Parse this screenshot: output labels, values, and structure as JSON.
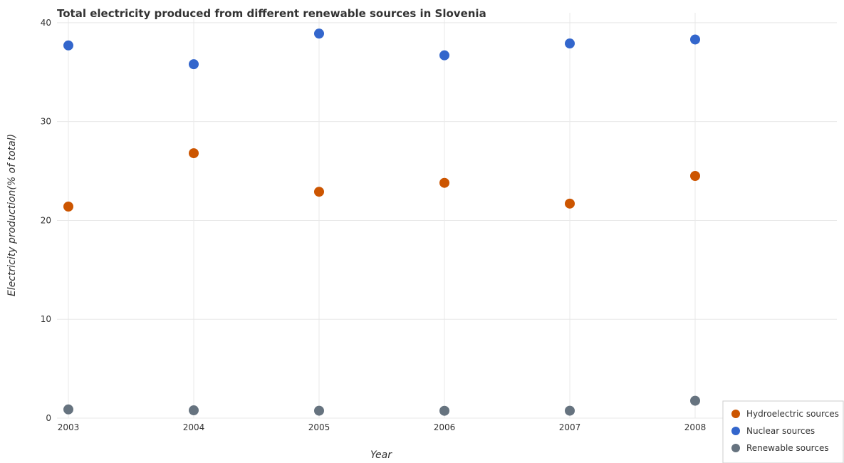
{
  "chart_data": {
    "type": "scatter",
    "title": "Total electricity produced from different renewable sources in Slovenia",
    "xlabel": "Year",
    "ylabel": "Electricity production(% of total)",
    "categories": [
      "2003",
      "2004",
      "2005",
      "2006",
      "2007",
      "2008"
    ],
    "ylim": [
      0,
      41
    ],
    "yticks": [
      "0",
      "10",
      "20",
      "30",
      "40"
    ],
    "ytick_values": [
      0,
      10,
      20,
      30,
      40
    ],
    "grid": true,
    "legend_position": "bottom-right",
    "series": [
      {
        "name": "Hydroelectric sources",
        "color": "#cc5500",
        "values": [
          21.4,
          26.8,
          22.9,
          23.8,
          21.7,
          24.5
        ]
      },
      {
        "name": "Nuclear sources",
        "color": "#3366cc",
        "values": [
          37.7,
          35.8,
          38.9,
          36.7,
          37.9,
          38.3
        ]
      },
      {
        "name": "Renewable sources",
        "color": "#66737f",
        "values": [
          0.88,
          0.79,
          0.75,
          0.74,
          0.75,
          1.76
        ]
      }
    ]
  }
}
